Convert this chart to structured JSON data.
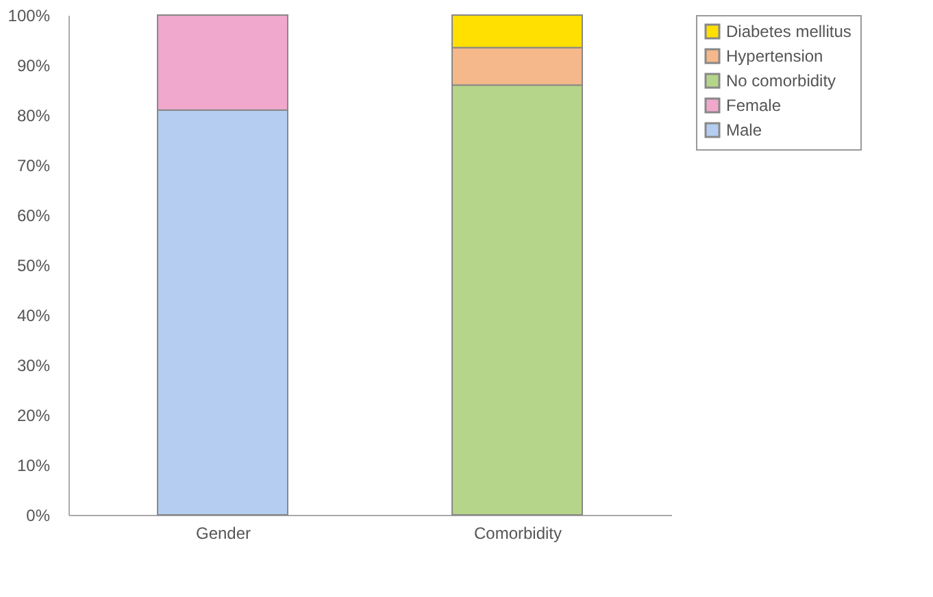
{
  "chart_data": {
    "type": "bar",
    "stacked": true,
    "categories": [
      "Gender",
      "Comorbidity"
    ],
    "series": [
      {
        "name": "Male",
        "color": "#b4cdf0",
        "values": [
          81,
          null
        ]
      },
      {
        "name": "Female",
        "color": "#f0a8cc",
        "values": [
          19,
          null
        ]
      },
      {
        "name": "No comorbidity",
        "color": "#b5d58a",
        "values": [
          null,
          86
        ]
      },
      {
        "name": "Hypertension",
        "color": "#f5b88a",
        "values": [
          null,
          7.5
        ]
      },
      {
        "name": "Diabetes mellitus",
        "color": "#ffe000",
        "values": [
          null,
          6.5
        ]
      }
    ],
    "ylim": [
      0,
      100
    ],
    "yticks": [
      {
        "value": 0,
        "label": "0%"
      },
      {
        "value": 10,
        "label": "10%"
      },
      {
        "value": 20,
        "label": "20%"
      },
      {
        "value": 30,
        "label": "30%"
      },
      {
        "value": 40,
        "label": "40%"
      },
      {
        "value": 50,
        "label": "50%"
      },
      {
        "value": 60,
        "label": "60%"
      },
      {
        "value": 70,
        "label": "70%"
      },
      {
        "value": 80,
        "label": "80%"
      },
      {
        "value": 90,
        "label": "90%"
      },
      {
        "value": 100,
        "label": "100%"
      }
    ],
    "grid": false,
    "legend": "right"
  }
}
